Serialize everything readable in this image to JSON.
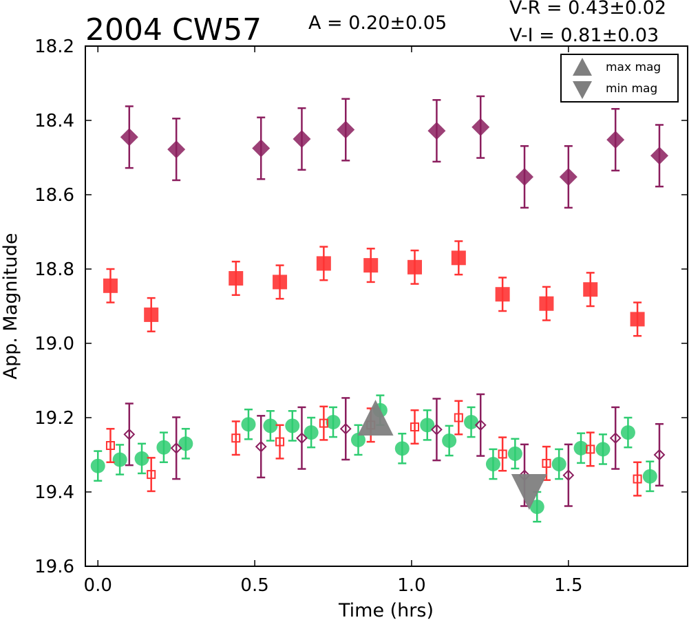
{
  "chart_data": {
    "type": "scatter",
    "title": "2004 CW57",
    "annotations": {
      "amplitude": "A  = 0.20±0.05",
      "v_r": "V-R = 0.43±0.02",
      "v_i": "V-I  = 0.81±0.03"
    },
    "xlabel": "Time (hrs)",
    "ylabel": "App. Magnitude",
    "xlim": [
      -0.04,
      1.88
    ],
    "ylim": [
      19.6,
      18.2
    ],
    "y_inverted": true,
    "xticks": [
      "0.0",
      "0.5",
      "1.0",
      "1.5"
    ],
    "xtick_values": [
      0.0,
      0.5,
      1.0,
      1.5
    ],
    "yticks": [
      "18.2",
      "18.4",
      "18.6",
      "18.8",
      "19.0",
      "19.2",
      "19.4",
      "19.6"
    ],
    "ytick_values": [
      18.2,
      18.4,
      18.6,
      18.8,
      19.0,
      19.2,
      19.4,
      19.6
    ],
    "grid": false,
    "legend": {
      "placement": "top-right",
      "entries": [
        {
          "label": "max mag",
          "marker": "triangle-up",
          "color": "#7f7f7f"
        },
        {
          "label": "min mag",
          "marker": "triangle-down",
          "color": "#7f7f7f"
        }
      ]
    },
    "colors": {
      "I_band": "#8b1e5e",
      "R_band": "#ff3333",
      "V_band": "#2ecc71",
      "markers": "#7f7f7f"
    },
    "series": [
      {
        "marker": "diamond-filled",
        "color": "#8b1e5e",
        "x": [
          0.1,
          0.25,
          0.52,
          0.65,
          0.79,
          1.08,
          1.22,
          1.36,
          1.5,
          1.65,
          1.79
        ],
        "y": [
          18.445,
          18.478,
          18.475,
          18.45,
          18.425,
          18.428,
          18.418,
          18.552,
          18.552,
          18.452,
          18.495
        ],
        "err": [
          0.083,
          0.083,
          0.083,
          0.083,
          0.083,
          0.083,
          0.083,
          0.083,
          0.083,
          0.083,
          0.083
        ]
      },
      {
        "marker": "square-filled",
        "color": "#ff3333",
        "x": [
          0.04,
          0.17,
          0.44,
          0.58,
          0.72,
          0.87,
          1.01,
          1.15,
          1.29,
          1.43,
          1.57,
          1.72
        ],
        "y": [
          18.845,
          18.923,
          18.825,
          18.835,
          18.785,
          18.79,
          18.795,
          18.77,
          18.868,
          18.893,
          18.855,
          18.935
        ],
        "err": [
          0.045,
          0.045,
          0.045,
          0.045,
          0.045,
          0.045,
          0.045,
          0.045,
          0.045,
          0.045,
          0.045,
          0.045
        ]
      },
      {
        "marker": "circle-filled",
        "color": "#2ecc71",
        "x": [
          0.0,
          0.07,
          0.14,
          0.21,
          0.28,
          0.48,
          0.55,
          0.62,
          0.68,
          0.75,
          0.83,
          0.9,
          0.97,
          1.05,
          1.12,
          1.19,
          1.26,
          1.33,
          1.4,
          1.47,
          1.54,
          1.61,
          1.69,
          1.76
        ],
        "y": [
          19.33,
          19.313,
          19.31,
          19.28,
          19.27,
          19.218,
          19.222,
          19.222,
          19.24,
          19.212,
          19.26,
          19.18,
          19.283,
          19.22,
          19.262,
          19.212,
          19.325,
          19.297,
          19.44,
          19.325,
          19.282,
          19.285,
          19.24,
          19.358
        ],
        "err": [
          0.04,
          0.04,
          0.04,
          0.04,
          0.04,
          0.04,
          0.04,
          0.04,
          0.04,
          0.04,
          0.04,
          0.04,
          0.04,
          0.04,
          0.04,
          0.04,
          0.04,
          0.04,
          0.04,
          0.04,
          0.04,
          0.04,
          0.04,
          0.04
        ]
      },
      {
        "marker": "square-open",
        "color": "#ff3333",
        "x": [
          0.04,
          0.17,
          0.44,
          0.58,
          0.72,
          0.87,
          1.01,
          1.15,
          1.29,
          1.43,
          1.57,
          1.72
        ],
        "y": [
          19.275,
          19.353,
          19.255,
          19.265,
          19.215,
          19.22,
          19.225,
          19.2,
          19.298,
          19.323,
          19.285,
          19.365
        ],
        "err": [
          0.045,
          0.045,
          0.045,
          0.045,
          0.045,
          0.045,
          0.045,
          0.045,
          0.045,
          0.045,
          0.045,
          0.045
        ]
      },
      {
        "marker": "diamond-open",
        "color": "#8b1e5e",
        "x": [
          0.1,
          0.25,
          0.52,
          0.65,
          0.79,
          1.08,
          1.22,
          1.36,
          1.5,
          1.65,
          1.79
        ],
        "y": [
          19.245,
          19.282,
          19.278,
          19.255,
          19.23,
          19.232,
          19.22,
          19.355,
          19.355,
          19.255,
          19.3
        ],
        "err": [
          0.083,
          0.083,
          0.083,
          0.083,
          0.083,
          0.083,
          0.083,
          0.083,
          0.083,
          0.083,
          0.083
        ]
      }
    ],
    "extrema_markers": [
      {
        "type": "max",
        "marker": "triangle-up",
        "x": 0.885,
        "y": 19.2,
        "color": "#7f7f7f"
      },
      {
        "type": "min",
        "marker": "triangle-down",
        "x": 1.375,
        "y": 19.4,
        "color": "#7f7f7f"
      }
    ]
  }
}
